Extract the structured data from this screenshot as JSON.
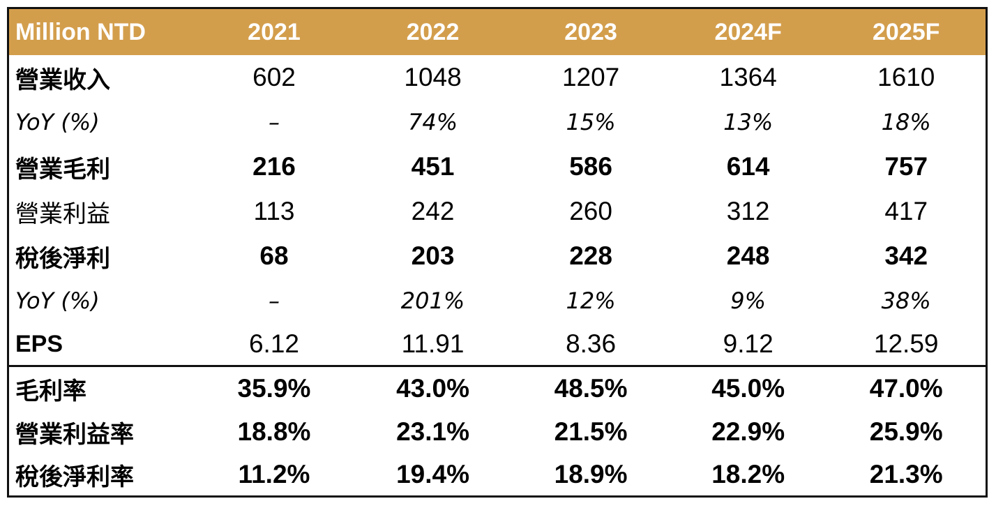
{
  "table": {
    "header": [
      "Million NTD",
      "2021",
      "2022",
      "2023",
      "2024F",
      "2025F"
    ],
    "rows": [
      {
        "label": "營業收入",
        "values": [
          "602",
          "1048",
          "1207",
          "1364",
          "1610"
        ]
      },
      {
        "label": "YoY (%)",
        "values": [
          "–",
          "74%",
          "15%",
          "13%",
          "18%"
        ]
      },
      {
        "label": "營業毛利",
        "values": [
          "216",
          "451",
          "586",
          "614",
          "757"
        ]
      },
      {
        "label": "營業利益",
        "values": [
          "113",
          "242",
          "260",
          "312",
          "417"
        ]
      },
      {
        "label": "稅後淨利",
        "values": [
          "68",
          "203",
          "228",
          "248",
          "342"
        ]
      },
      {
        "label": "YoY (%)",
        "values": [
          "–",
          "201%",
          "12%",
          "9%",
          "38%"
        ]
      },
      {
        "label": "EPS",
        "values": [
          "6.12",
          "11.91",
          "8.36",
          "9.12",
          "12.59"
        ]
      },
      {
        "label": "毛利率",
        "values": [
          "35.9%",
          "43.0%",
          "48.5%",
          "45.0%",
          "47.0%"
        ]
      },
      {
        "label": "營業利益率",
        "values": [
          "18.8%",
          "23.1%",
          "21.5%",
          "22.9%",
          "25.9%"
        ]
      },
      {
        "label": "稅後淨利率",
        "values": [
          "11.2%",
          "19.4%",
          "18.9%",
          "18.2%",
          "21.3%"
        ]
      }
    ]
  },
  "colors": {
    "header_bg": "#d39e4c",
    "header_text": "#ffffff",
    "border": "#111111"
  }
}
